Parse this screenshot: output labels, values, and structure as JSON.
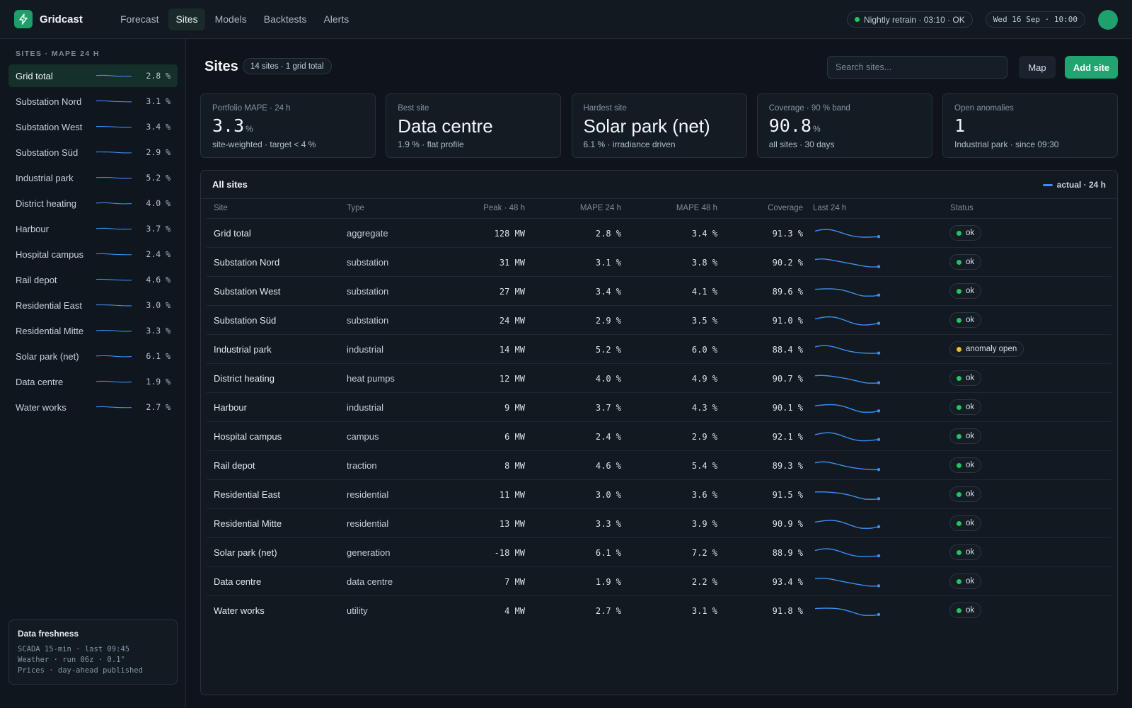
{
  "app": {
    "name": "Gridcast"
  },
  "nav": [
    {
      "label": "Forecast",
      "active": false
    },
    {
      "label": "Sites",
      "active": true
    },
    {
      "label": "Models",
      "active": false
    },
    {
      "label": "Backtests",
      "active": false
    },
    {
      "label": "Alerts",
      "active": false
    }
  ],
  "topbar": {
    "retrain_status": "Nightly retrain · 03:10 · OK",
    "datetime": "Wed 16 Sep · 10:00"
  },
  "sidebar": {
    "heading": "SITES · MAPE 24 H",
    "items": [
      {
        "name": "Grid total",
        "value": "2.8 %",
        "active": true
      },
      {
        "name": "Substation Nord",
        "value": "3.1 %"
      },
      {
        "name": "Substation West",
        "value": "3.4 %"
      },
      {
        "name": "Substation Süd",
        "value": "2.9 %"
      },
      {
        "name": "Industrial park",
        "value": "5.2 %"
      },
      {
        "name": "District heating",
        "value": "4.0 %"
      },
      {
        "name": "Harbour",
        "value": "3.7 %"
      },
      {
        "name": "Hospital campus",
        "value": "2.4 %"
      },
      {
        "name": "Rail depot",
        "value": "4.6 %"
      },
      {
        "name": "Residential East",
        "value": "3.0 %"
      },
      {
        "name": "Residential Mitte",
        "value": "3.3 %"
      },
      {
        "name": "Solar park (net)",
        "value": "6.1 %"
      },
      {
        "name": "Data centre",
        "value": "1.9 %"
      },
      {
        "name": "Water works",
        "value": "2.7 %"
      }
    ],
    "freshness": {
      "title": "Data freshness",
      "lines": [
        "SCADA 15-min · last 09:45",
        "Weather · run 06z · 0.1°",
        "Prices · day-ahead published"
      ]
    }
  },
  "main": {
    "title": "Sites",
    "count_pill": "14 sites · 1 grid total",
    "search_placeholder": "Search sites...",
    "map_button": "Map",
    "add_button": "Add site"
  },
  "kpis": [
    {
      "label": "Portfolio MAPE · 24 h",
      "value": "3.3",
      "unit": "%",
      "sub": "site-weighted · target < 4 %",
      "numeric": true
    },
    {
      "label": "Best site",
      "value": "Data centre",
      "unit": "",
      "sub": "1.9 % · flat profile",
      "numeric": false
    },
    {
      "label": "Hardest site",
      "value": "Solar park (net)",
      "unit": "",
      "sub": "6.1 % · irradiance driven",
      "numeric": false
    },
    {
      "label": "Coverage · 90 % band",
      "value": "90.8",
      "unit": "%",
      "sub": "all sites · 30 days",
      "numeric": true
    },
    {
      "label": "Open anomalies",
      "value": "1",
      "unit": "",
      "sub": "Industrial park · since 09:30",
      "numeric": true
    }
  ],
  "table": {
    "title": "All sites",
    "legend": "actual · 24 h",
    "line_color": "#3d8ef0",
    "columns": {
      "site": "Site",
      "type": "Type",
      "peak": "Peak · 48 h",
      "mape24": "MAPE 24 h",
      "mape48": "MAPE 48 h",
      "coverage": "Coverage",
      "last24": "Last 24 h",
      "status": "Status"
    },
    "rows": [
      {
        "site": "Grid total",
        "type": "aggregate",
        "peak": "128 MW",
        "mape24": "2.8 %",
        "mape48": "3.4 %",
        "coverage": "91.3 %",
        "status": "ok"
      },
      {
        "site": "Substation Nord",
        "type": "substation",
        "peak": "31 MW",
        "mape24": "3.1 %",
        "mape48": "3.8 %",
        "coverage": "90.2 %",
        "status": "ok"
      },
      {
        "site": "Substation West",
        "type": "substation",
        "peak": "27 MW",
        "mape24": "3.4 %",
        "mape48": "4.1 %",
        "coverage": "89.6 %",
        "status": "ok"
      },
      {
        "site": "Substation Süd",
        "type": "substation",
        "peak": "24 MW",
        "mape24": "2.9 %",
        "mape48": "3.5 %",
        "coverage": "91.0 %",
        "status": "ok"
      },
      {
        "site": "Industrial park",
        "type": "industrial",
        "peak": "14 MW",
        "mape24": "5.2 %",
        "mape48": "6.0 %",
        "coverage": "88.4 %",
        "status": "anomaly open"
      },
      {
        "site": "District heating",
        "type": "heat pumps",
        "peak": "12 MW",
        "mape24": "4.0 %",
        "mape48": "4.9 %",
        "coverage": "90.7 %",
        "status": "ok"
      },
      {
        "site": "Harbour",
        "type": "industrial",
        "peak": "9 MW",
        "mape24": "3.7 %",
        "mape48": "4.3 %",
        "coverage": "90.1 %",
        "status": "ok"
      },
      {
        "site": "Hospital campus",
        "type": "campus",
        "peak": "6 MW",
        "mape24": "2.4 %",
        "mape48": "2.9 %",
        "coverage": "92.1 %",
        "status": "ok"
      },
      {
        "site": "Rail depot",
        "type": "traction",
        "peak": "8 MW",
        "mape24": "4.6 %",
        "mape48": "5.4 %",
        "coverage": "89.3 %",
        "status": "ok"
      },
      {
        "site": "Residential East",
        "type": "residential",
        "peak": "11 MW",
        "mape24": "3.0 %",
        "mape48": "3.6 %",
        "coverage": "91.5 %",
        "status": "ok"
      },
      {
        "site": "Residential Mitte",
        "type": "residential",
        "peak": "13 MW",
        "mape24": "3.3 %",
        "mape48": "3.9 %",
        "coverage": "90.9 %",
        "status": "ok"
      },
      {
        "site": "Solar park (net)",
        "type": "generation",
        "peak": "-18 MW",
        "mape24": "6.1 %",
        "mape48": "7.2 %",
        "coverage": "88.9 %",
        "status": "ok"
      },
      {
        "site": "Data centre",
        "type": "data centre",
        "peak": "7 MW",
        "mape24": "1.9 %",
        "mape48": "2.2 %",
        "coverage": "93.4 %",
        "status": "ok"
      },
      {
        "site": "Water works",
        "type": "utility",
        "peak": "4 MW",
        "mape24": "2.7 %",
        "mape48": "3.1 %",
        "coverage": "91.8 %",
        "status": "ok"
      }
    ]
  }
}
